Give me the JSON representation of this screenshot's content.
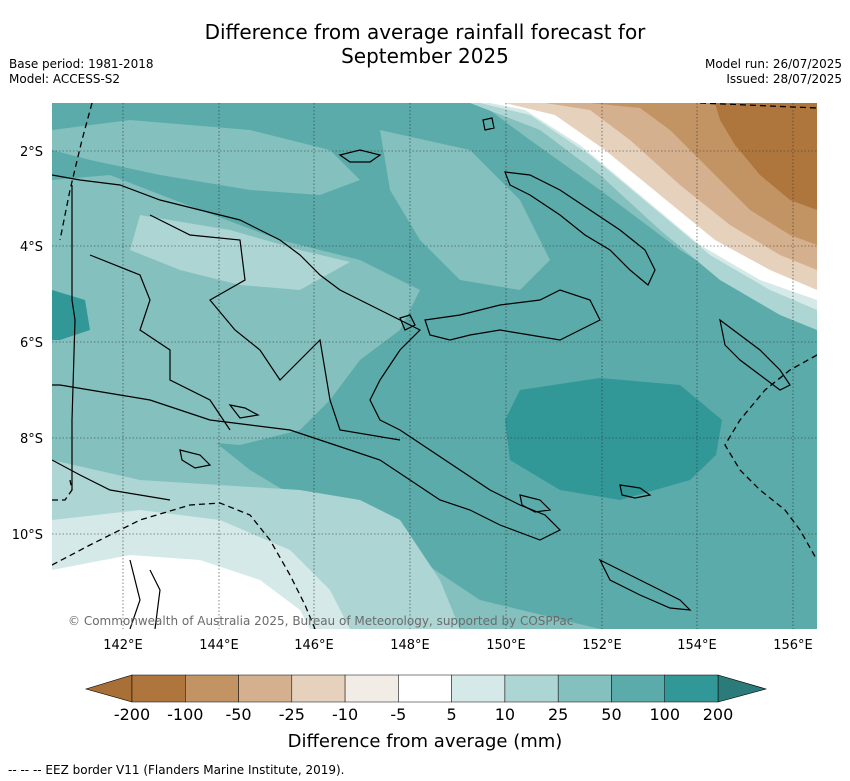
{
  "header": {
    "title_line1": "Difference from average rainfall forecast for",
    "title_line2": "September 2025",
    "base_period": "Base period: 1981-2018",
    "model": "Model: ACCESS-S2",
    "model_run": "Model run: 26/07/2025",
    "issued": "Issued: 28/07/2025"
  },
  "map": {
    "copyright": "© Commonwealth of Australia 2025, Bureau of Meteorology, supported by COSPPac",
    "lat_labels": [
      "2°S",
      "4°S",
      "6°S",
      "8°S",
      "10°S"
    ],
    "lon_labels": [
      "142°E",
      "144°E",
      "146°E",
      "148°E",
      "150°E",
      "152°E",
      "154°E",
      "156°E"
    ]
  },
  "legend": {
    "title": "Difference from average (mm)",
    "tick_labels": [
      "-200",
      "-100",
      "-50",
      "-25",
      "-10",
      "-5",
      "5",
      "10",
      "25",
      "50",
      "100",
      "200"
    ],
    "colors": {
      "below_min": "#a86f36",
      "bins": [
        "#ae763d",
        "#c39463",
        "#d4b08e",
        "#e6d1bd",
        "#f1ede6",
        "#ffffff",
        "#d4e9e8",
        "#acd5d4",
        "#83c0be",
        "#5aabaa",
        "#319797"
      ],
      "above_max": "#2b7b7b"
    }
  },
  "footer": {
    "eez_note": "-- -- -- EEZ border V11 (Flanders Marine Institute, 2019)."
  }
}
